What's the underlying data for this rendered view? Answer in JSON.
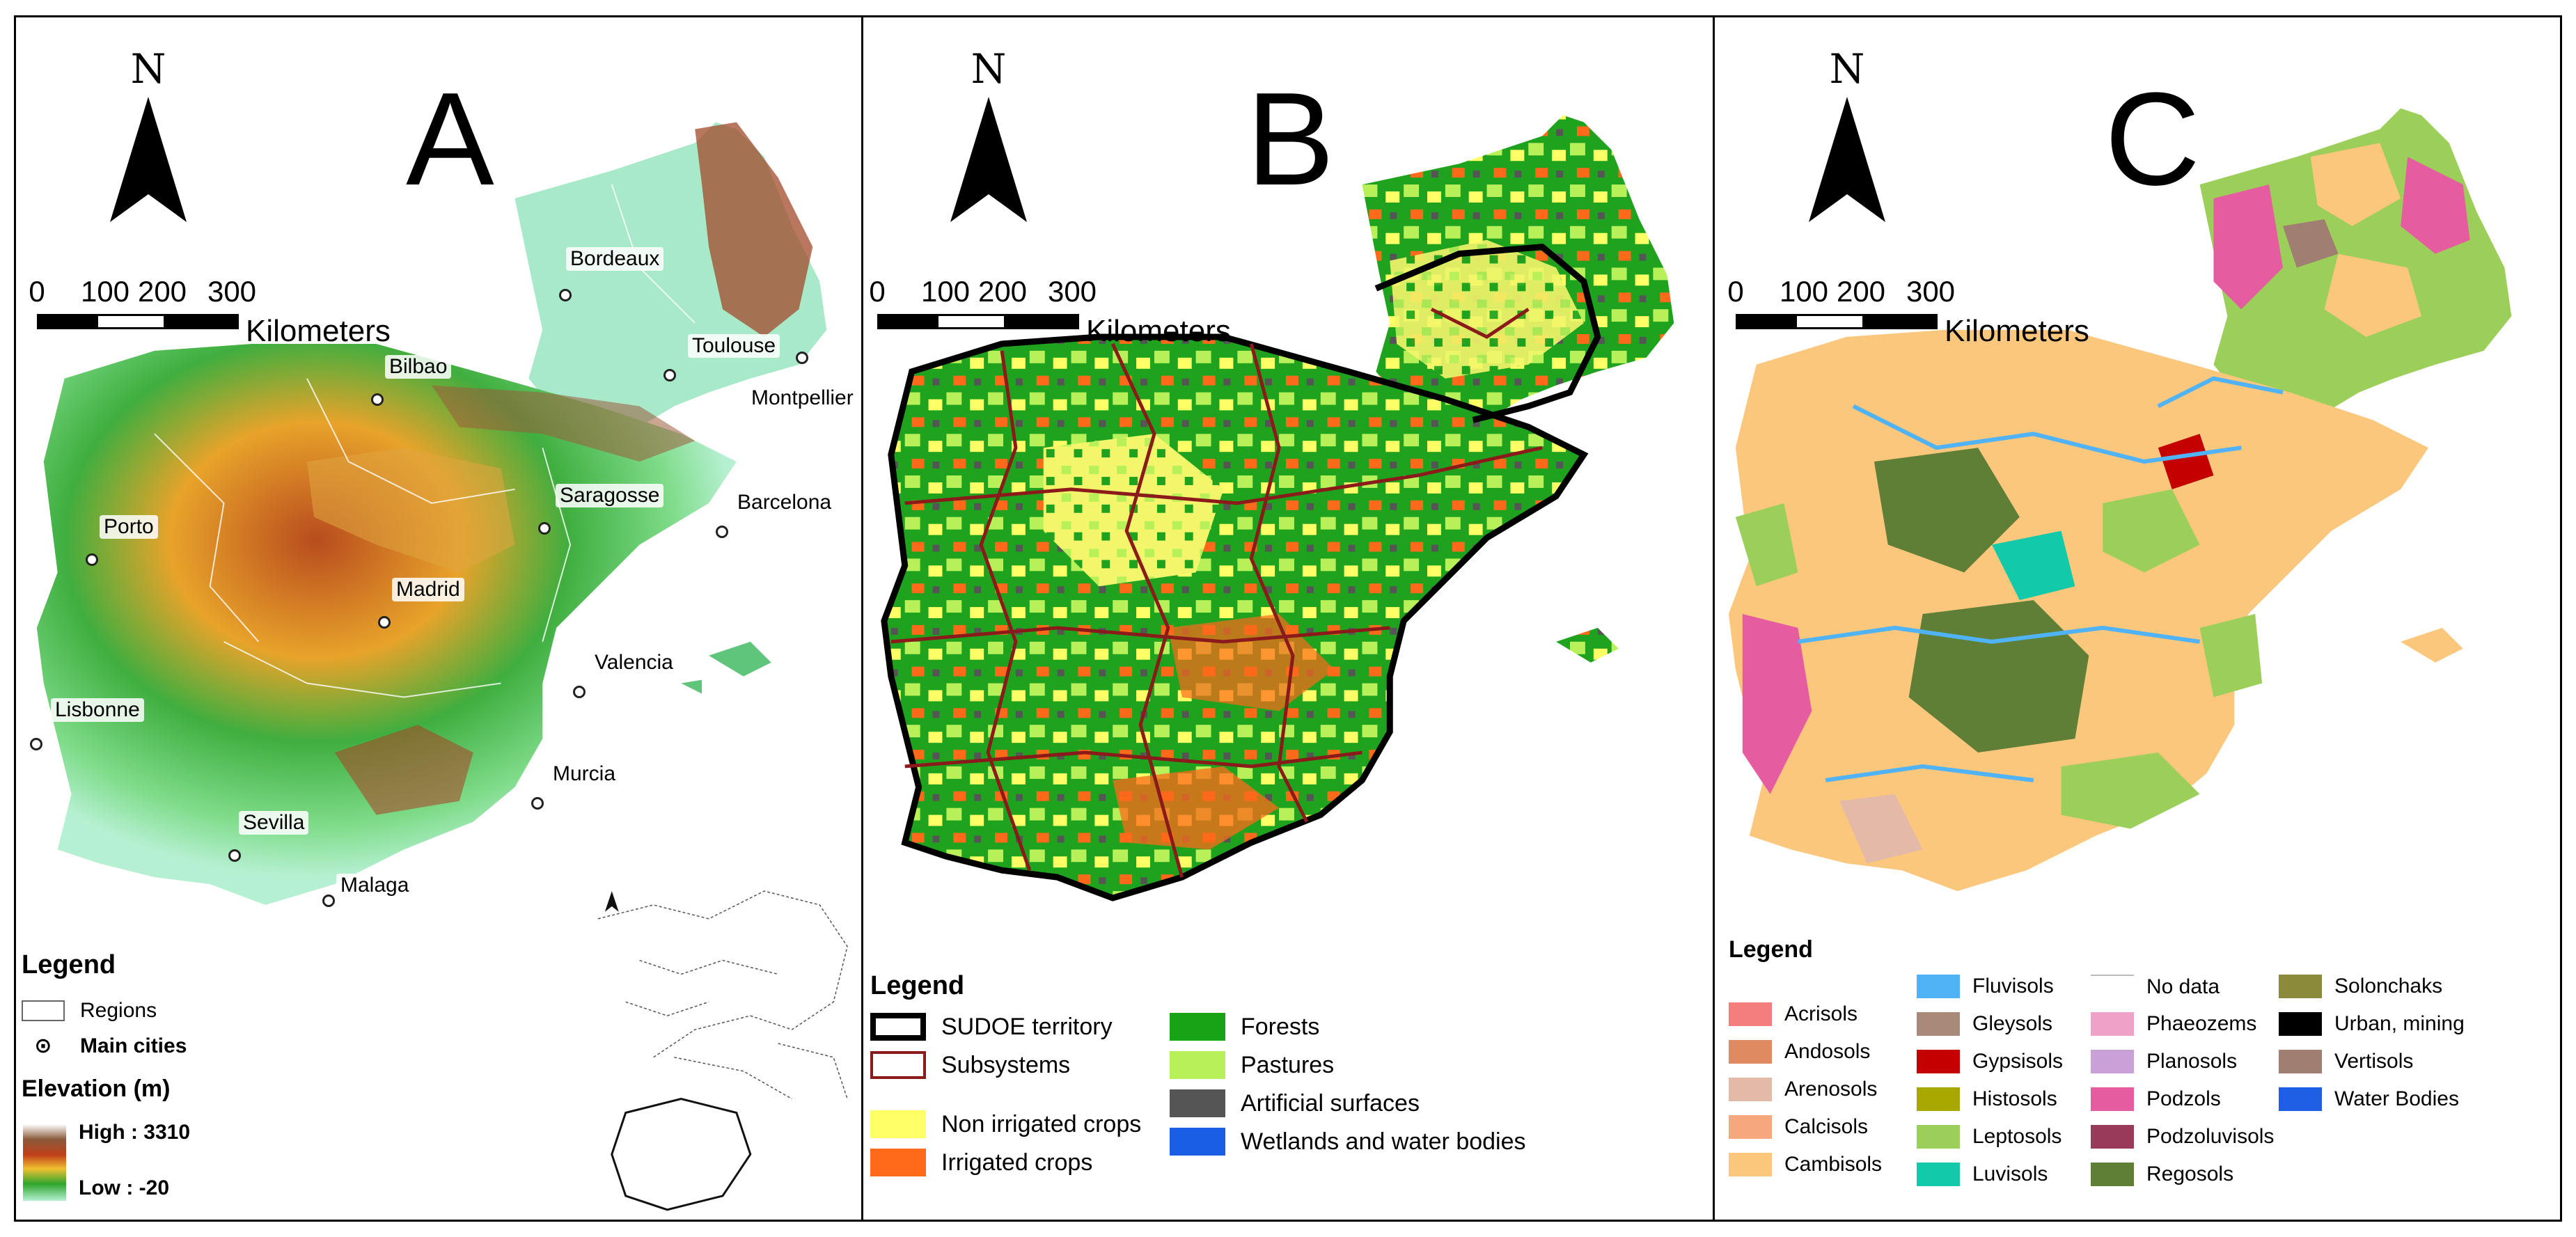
{
  "north_letter": "N",
  "scale": {
    "ticks": [
      "0",
      "100",
      "200",
      "300"
    ],
    "unit": "Kilometers"
  },
  "panel_a": {
    "letter": "A",
    "cities": [
      {
        "name": "Bordeaux"
      },
      {
        "name": "Toulouse"
      },
      {
        "name": "Bilbao"
      },
      {
        "name": "Montpellier"
      },
      {
        "name": "Saragosse"
      },
      {
        "name": "Barcelona"
      },
      {
        "name": "Porto"
      },
      {
        "name": "Madrid"
      },
      {
        "name": "Valencia"
      },
      {
        "name": "Lisbonne"
      },
      {
        "name": "Murcia"
      },
      {
        "name": "Sevilla"
      },
      {
        "name": "Malaga"
      }
    ],
    "legend": {
      "title": "Legend",
      "regions": "Regions",
      "main_cities": "Main cities",
      "elevation_title": "Elevation (m)",
      "high": "High : 3310",
      "low": "Low : -20"
    }
  },
  "panel_b": {
    "letter": "B",
    "legend": {
      "title": "Legend",
      "items": [
        {
          "label": "SUDOE territory",
          "color": "#000000",
          "kind": "outline-thick"
        },
        {
          "label": "Subsystems",
          "color": "#8b1a1a",
          "kind": "outline"
        },
        {
          "label": "Non irrigated crops",
          "color": "#ffff66",
          "kind": "fill"
        },
        {
          "label": "Irrigated crops",
          "color": "#ff6a1a",
          "kind": "fill"
        },
        {
          "label": "Forests",
          "color": "#16a316",
          "kind": "fill"
        },
        {
          "label": "Pastures",
          "color": "#b8f05a",
          "kind": "fill"
        },
        {
          "label": "Artificial surfaces",
          "color": "#555555",
          "kind": "fill"
        },
        {
          "label": "Wetlands and water bodies",
          "color": "#1a5ee6",
          "kind": "fill"
        }
      ]
    }
  },
  "panel_c": {
    "letter": "C",
    "legend": {
      "title": "Legend",
      "columns": [
        [
          {
            "label": "Acrisols",
            "color": "#f47d7d"
          },
          {
            "label": "Andosols",
            "color": "#e08a62"
          },
          {
            "label": "Arenosols",
            "color": "#e3b9a8"
          },
          {
            "label": "Calcisols",
            "color": "#f7a77e"
          },
          {
            "label": "Cambisols",
            "color": "#fbc77c"
          }
        ],
        [
          {
            "label": "Fluvisols",
            "color": "#4fb3f5"
          },
          {
            "label": "Gleysols",
            "color": "#a98a7a"
          },
          {
            "label": "Gypsisols",
            "color": "#c40000"
          },
          {
            "label": "Histosols",
            "color": "#a8a800"
          },
          {
            "label": "Leptosols",
            "color": "#9ccf5a"
          },
          {
            "label": "Luvisols",
            "color": "#12c9a9"
          }
        ],
        [
          {
            "label": "No data",
            "color": "#ffffff"
          },
          {
            "label": "Phaeozems",
            "color": "#efa1c8"
          },
          {
            "label": "Planosols",
            "color": "#c9a0d8"
          },
          {
            "label": "Podzols",
            "color": "#e65ca0"
          },
          {
            "label": "Podzoluvisols",
            "color": "#9a3a5a"
          },
          {
            "label": "Regosols",
            "color": "#5f7f36"
          }
        ],
        [
          {
            "label": "Solonchaks",
            "color": "#8a8a3a"
          },
          {
            "label": "Urban, mining",
            "color": "#000000"
          },
          {
            "label": "Vertisols",
            "color": "#a07f72"
          },
          {
            "label": "Water Bodies",
            "color": "#1f5fe6"
          }
        ]
      ]
    }
  }
}
